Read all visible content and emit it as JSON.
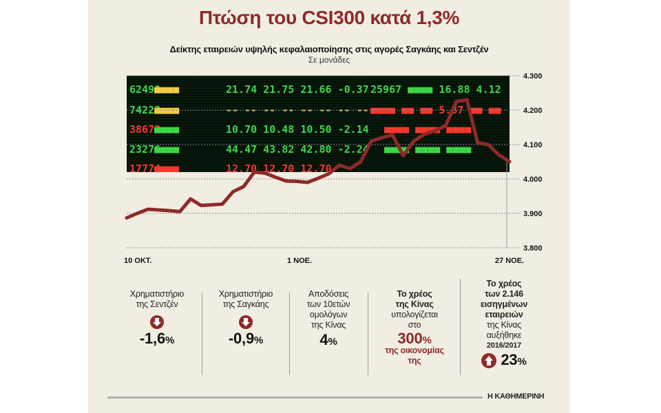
{
  "headline": "Πτώση του CSI300 κατά 1,3%",
  "chart_data": {
    "type": "line",
    "title": "Δείκτης εταιρειών υψηλής κεφαλαιοποίησης στις αγορές Σαγκάης και Σεντζέν",
    "ylabel": "Σε μονάδες",
    "ylim": [
      3800,
      4300
    ],
    "y_ticks": [
      "4.300",
      "4.200",
      "4.100",
      "4.000",
      "3.900",
      "3.800"
    ],
    "y_tick_values": [
      4300,
      4200,
      4100,
      4000,
      3900,
      3800
    ],
    "x_labels": [
      "10 ΟΚΤ.",
      "1 ΝΟΕ.",
      "27 ΝΟΕ."
    ],
    "x_label_index": [
      0,
      14,
      31
    ],
    "series": [
      {
        "color": "#8e2a29",
        "values": [
          3887,
          3900,
          3912,
          3910,
          3908,
          3905,
          3942,
          3923,
          3925,
          3927,
          3963,
          3978,
          4020,
          4017,
          4005,
          3994,
          3993,
          3990,
          4002,
          4015,
          4040,
          4030,
          4050,
          4110,
          4120,
          4128,
          4068,
          4110,
          4130,
          4140,
          4155,
          4225,
          4230,
          4105,
          4100,
          4070,
          4050
        ]
      }
    ],
    "grid": true,
    "background": "stock ticker board photo"
  },
  "stats": {
    "shenzhen_label": [
      "Χρηματιστήριο",
      "της Σεντζέν"
    ],
    "shenzhen_value": "-1,6",
    "shanghai_label": [
      "Χρηματιστήριο",
      "της Σαγκάης"
    ],
    "shanghai_value": "-0,9",
    "bonds_label": [
      "Αποδόσεις",
      "των 10ετών",
      "ομολόγων",
      "της Κίνας"
    ],
    "bonds_value": "4",
    "pct_sign": "%",
    "debt_title": [
      "Το χρέος",
      "της Κίνας"
    ],
    "debt_text": [
      "υπολογίζεται",
      "στο"
    ],
    "debt_value": "300",
    "debt_tail": [
      "της οικονομίας",
      "της"
    ],
    "corp_title": [
      "Το χρέος",
      "των 2.146",
      "εισηγμένων",
      "εταιρειών"
    ],
    "corp_text": [
      "της Κίνας",
      "αυξήθηκε"
    ],
    "corp_period": "2016/2017",
    "corp_value": "23"
  },
  "brand": "Η ΚΑΘΗΜΕΡΙΝΗ",
  "colors": {
    "accent": "#8e2a29",
    "panel": "#f1ede2",
    "board_dark": "#061208"
  }
}
